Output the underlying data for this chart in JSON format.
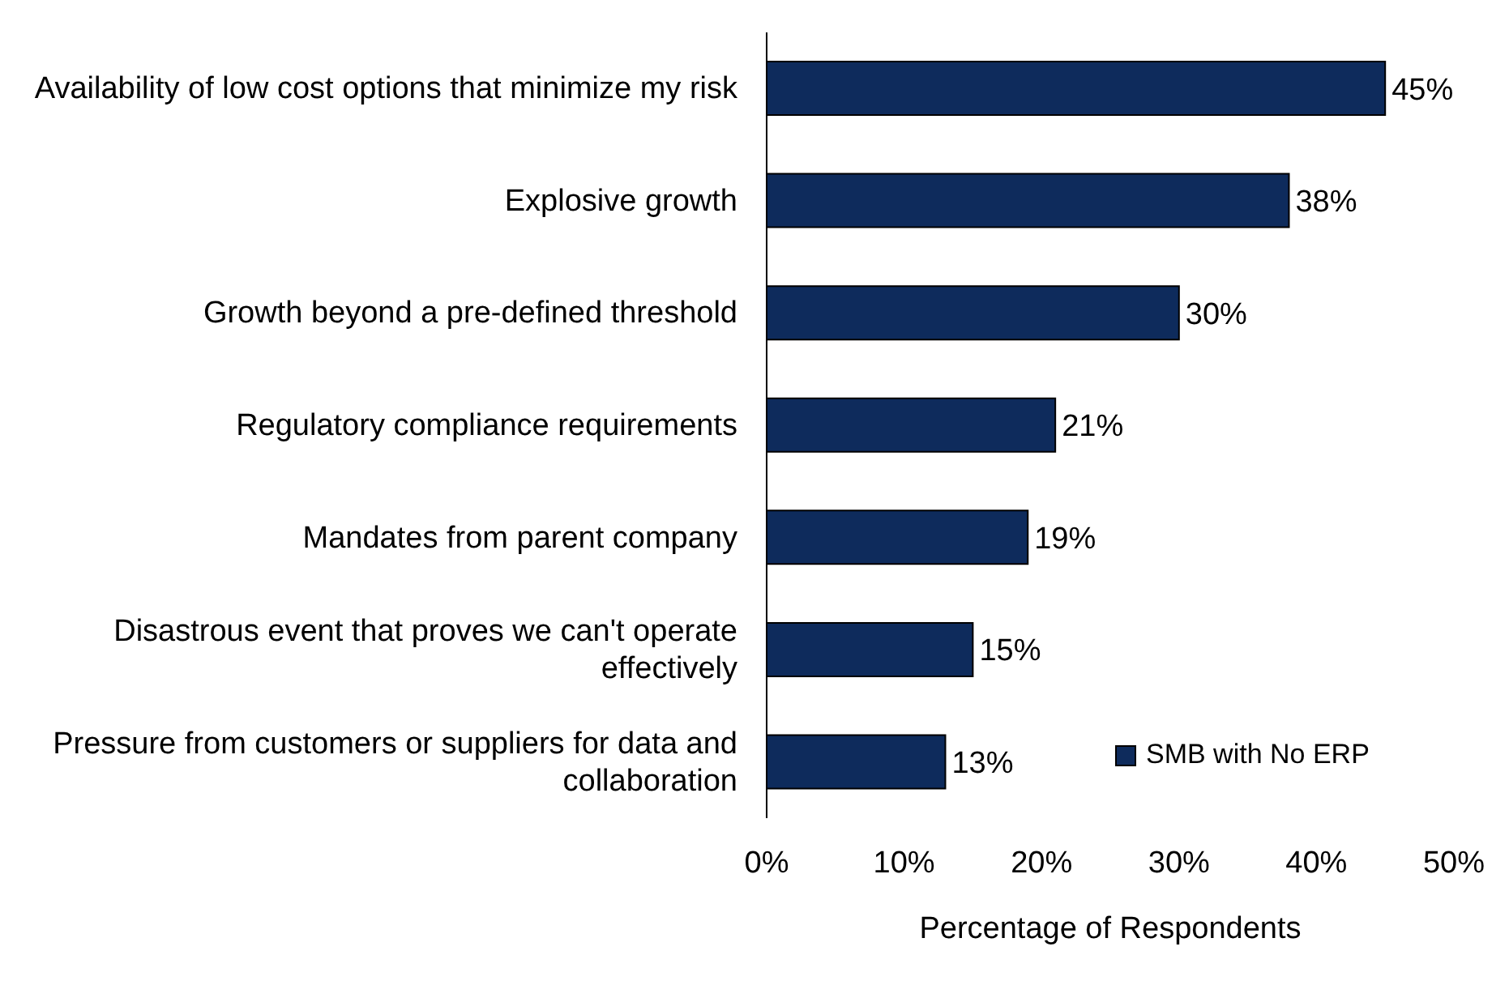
{
  "chart_data": {
    "type": "bar",
    "orientation": "horizontal",
    "categories": [
      "Availability of low cost options that minimize my risk",
      "Explosive growth",
      "Growth beyond a pre-defined threshold",
      "Regulatory compliance requirements",
      "Mandates from parent company",
      "Disastrous event that proves we can't operate effectively",
      "Pressure from customers or suppliers for data and collaboration"
    ],
    "series": [
      {
        "name": "SMB with No ERP",
        "color": "#0e2b5c",
        "values": [
          45,
          38,
          30,
          21,
          19,
          15,
          13
        ],
        "value_labels": [
          "45%",
          "38%",
          "30%",
          "21%",
          "19%",
          "15%",
          "13%"
        ]
      }
    ],
    "xlim": [
      0,
      50
    ],
    "xticks": [
      {
        "value": 0,
        "label": "0%"
      },
      {
        "value": 10,
        "label": "10%"
      },
      {
        "value": 20,
        "label": "20%"
      },
      {
        "value": 30,
        "label": "30%"
      },
      {
        "value": 40,
        "label": "40%"
      },
      {
        "value": 50,
        "label": "50%"
      }
    ],
    "xlabel": "Percentage of Respondents",
    "grid": false,
    "legend": "right"
  }
}
